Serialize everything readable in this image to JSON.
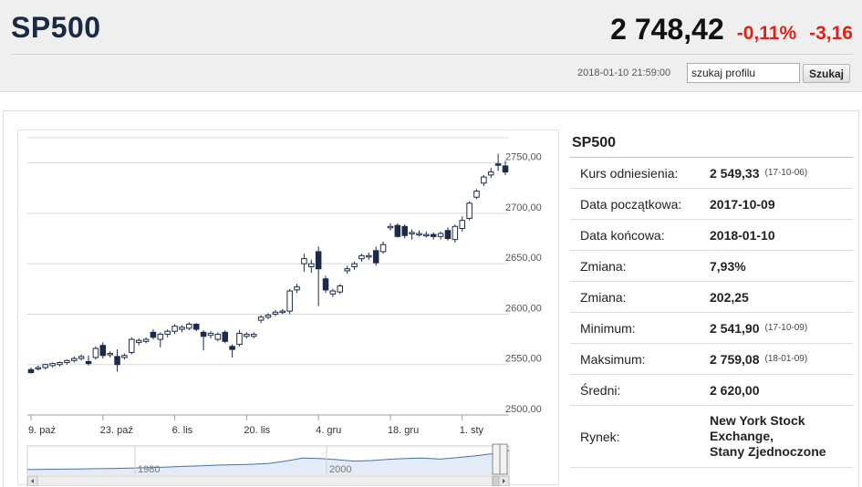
{
  "header": {
    "title": "SP500",
    "price": "2 748,42",
    "change_pct": "-0,11%",
    "change_abs": "-3,16",
    "timestamp": "2018-01-10 21:59:00",
    "search_value": "szukaj profilu",
    "search_button": "Szukaj"
  },
  "panel": {
    "title": "SP500",
    "rows": [
      {
        "label": "Kurs odniesienia:",
        "value": "2 549,33",
        "sub": "(17-10-06)"
      },
      {
        "label": "Data początkowa:",
        "value": "2017-10-09",
        "sub": ""
      },
      {
        "label": "Data końcowa:",
        "value": "2018-01-10",
        "sub": ""
      },
      {
        "label": "Zmiana:",
        "value": "7,93%",
        "sub": ""
      },
      {
        "label": "Zmiana:",
        "value": "202,25",
        "sub": ""
      },
      {
        "label": "Minimum:",
        "value": "2 541,90",
        "sub": "(17-10-09)"
      },
      {
        "label": "Maksimum:",
        "value": "2 759,08",
        "sub": "(18-01-09)"
      },
      {
        "label": "Średni:",
        "value": "2 620,00",
        "sub": ""
      }
    ],
    "market": {
      "label": "Rynek:",
      "lines": [
        "New York Stock",
        "Exchange,",
        "Stany Zjednoczone"
      ]
    }
  },
  "chart_data": {
    "type": "candlestick",
    "ylim": [
      2500,
      2775
    ],
    "yticks": [
      "2750,00",
      "2700,00",
      "2650,00",
      "2600,00",
      "2550,00",
      "2500,00"
    ],
    "ytick_values": [
      2750,
      2700,
      2650,
      2600,
      2550,
      2500
    ],
    "xticks": [
      "9. paź",
      "23. paź",
      "6. lis",
      "20. lis",
      "4. gru",
      "18. gru",
      "1. sty"
    ],
    "xtick_index": [
      0,
      10,
      20,
      30,
      40,
      50,
      60
    ],
    "colors": {
      "up": "#ffffff",
      "down": "#1c2b4a",
      "stroke": "#1c2b4a",
      "grid": "#d8d8d8"
    },
    "candles": [
      [
        2545,
        2547,
        2541,
        2542
      ],
      [
        2546,
        2549,
        2544,
        2547
      ],
      [
        2547,
        2551,
        2545,
        2550
      ],
      [
        2549,
        2552,
        2547,
        2551
      ],
      [
        2550,
        2553,
        2548,
        2552
      ],
      [
        2552,
        2555,
        2550,
        2554
      ],
      [
        2554,
        2558,
        2552,
        2556
      ],
      [
        2556,
        2560,
        2554,
        2558
      ],
      [
        2553,
        2559,
        2549,
        2551
      ],
      [
        2557,
        2568,
        2555,
        2566
      ],
      [
        2569,
        2572,
        2556,
        2559
      ],
      [
        2560,
        2563,
        2557,
        2561
      ],
      [
        2558,
        2565,
        2543,
        2550
      ],
      [
        2557,
        2561,
        2555,
        2559
      ],
      [
        2562,
        2577,
        2560,
        2575
      ],
      [
        2572,
        2576,
        2569,
        2574
      ],
      [
        2573,
        2577,
        2571,
        2575
      ],
      [
        2582,
        2585,
        2575,
        2577
      ],
      [
        2575,
        2582,
        2567,
        2580
      ],
      [
        2580,
        2585,
        2577,
        2583
      ],
      [
        2583,
        2590,
        2580,
        2588
      ],
      [
        2585,
        2589,
        2582,
        2587
      ],
      [
        2586,
        2592,
        2584,
        2590
      ],
      [
        2590,
        2591,
        2583,
        2585
      ],
      [
        2582,
        2584,
        2564,
        2578
      ],
      [
        2579,
        2583,
        2576,
        2581
      ],
      [
        2575,
        2582,
        2573,
        2580
      ],
      [
        2582,
        2584,
        2571,
        2573
      ],
      [
        2568,
        2570,
        2557,
        2565
      ],
      [
        2570,
        2584,
        2568,
        2581
      ],
      [
        2578,
        2582,
        2576,
        2580
      ],
      [
        2578,
        2582,
        2576,
        2580
      ],
      [
        2594,
        2599,
        2591,
        2597
      ],
      [
        2597,
        2601,
        2595,
        2599
      ],
      [
        2600,
        2604,
        2598,
        2602
      ],
      [
        2602,
        2605,
        2600,
        2603
      ],
      [
        2603,
        2625,
        2600,
        2623
      ],
      [
        2624,
        2630,
        2621,
        2627
      ],
      [
        2650,
        2660,
        2642,
        2655
      ],
      [
        2647,
        2654,
        2641,
        2650
      ],
      [
        2662,
        2667,
        2608,
        2645
      ],
      [
        2635,
        2638,
        2621,
        2624
      ],
      [
        2620,
        2625,
        2617,
        2623
      ],
      [
        2622,
        2630,
        2620,
        2628
      ],
      [
        2643,
        2648,
        2640,
        2645
      ],
      [
        2647,
        2652,
        2644,
        2650
      ],
      [
        2655,
        2660,
        2652,
        2658
      ],
      [
        2657,
        2661,
        2654,
        2658
      ],
      [
        2663,
        2667,
        2648,
        2651
      ],
      [
        2662,
        2672,
        2660,
        2669
      ],
      [
        2686,
        2690,
        2683,
        2687
      ],
      [
        2688,
        2690,
        2676,
        2677
      ],
      [
        2687,
        2689,
        2675,
        2678
      ],
      [
        2680,
        2684,
        2674,
        2681
      ],
      [
        2680,
        2683,
        2677,
        2680
      ],
      [
        2679,
        2682,
        2676,
        2679
      ],
      [
        2679,
        2681,
        2674,
        2677
      ],
      [
        2677,
        2682,
        2674,
        2680
      ],
      [
        2683,
        2686,
        2673,
        2675
      ],
      [
        2674,
        2689,
        2671,
        2687
      ],
      [
        2685,
        2697,
        2682,
        2693
      ],
      [
        2695,
        2712,
        2693,
        2710
      ],
      [
        2716,
        2724,
        2714,
        2722
      ],
      [
        2730,
        2738,
        2727,
        2736
      ],
      [
        2738,
        2745,
        2735,
        2741
      ],
      [
        2749,
        2759,
        2742,
        2748
      ],
      [
        2747,
        2752,
        2738,
        2741
      ]
    ],
    "navigator": {
      "labels": [
        "1980",
        "2000"
      ],
      "trend": [
        0.95,
        0.94,
        0.93,
        0.92,
        0.91,
        0.9,
        0.88,
        0.86,
        0.84,
        0.8,
        0.78,
        0.74,
        0.72,
        0.7,
        0.66,
        0.55,
        0.4,
        0.42,
        0.48,
        0.55,
        0.52,
        0.46,
        0.42,
        0.4,
        0.45,
        0.38,
        0.3,
        0.2,
        0.05
      ]
    }
  }
}
